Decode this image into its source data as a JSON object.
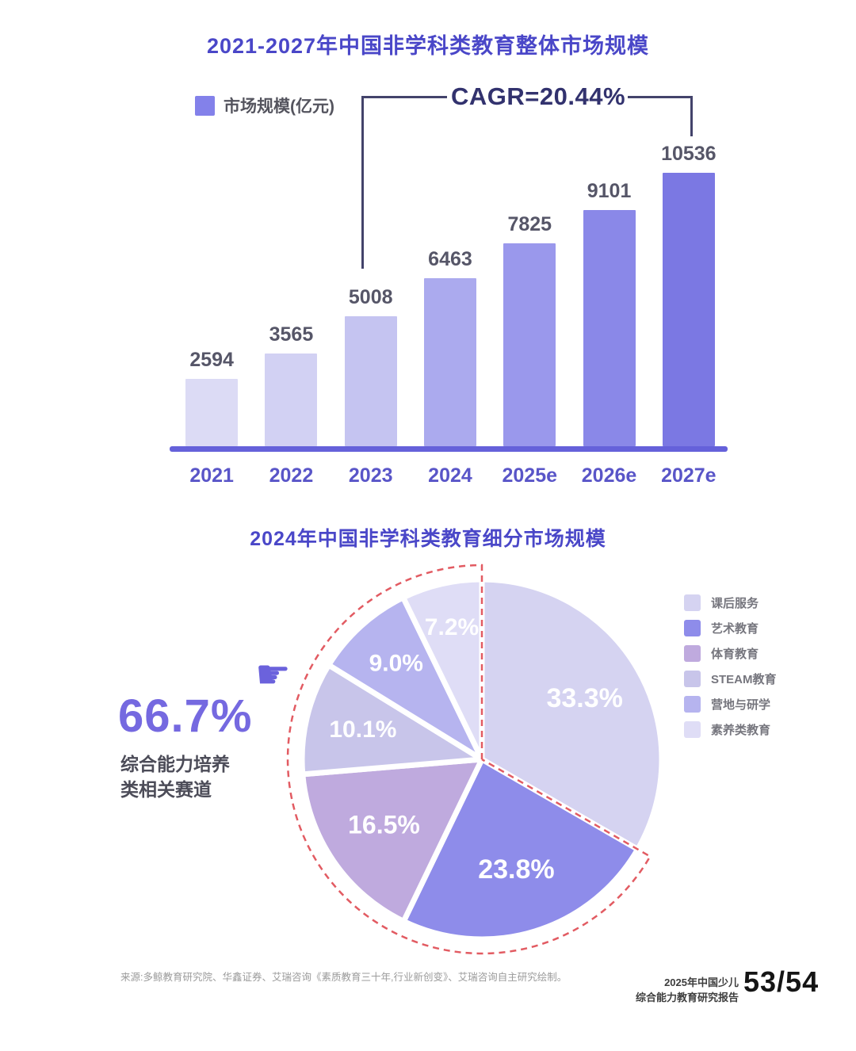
{
  "chart_data": [
    {
      "type": "bar",
      "title": "2021-2027年中国非学科类教育整体市场规模",
      "legend": [
        {
          "label": "市场规模(亿元)",
          "color": "#8381ea"
        }
      ],
      "legend_position": "top-left",
      "annotation": "CAGR=20.44%",
      "categories": [
        "2021",
        "2022",
        "2023",
        "2024",
        "2025e",
        "2026e",
        "2027e"
      ],
      "values": [
        2594,
        3565,
        5008,
        6463,
        7825,
        9101,
        10536
      ],
      "bar_colors": [
        "#dcdbf5",
        "#d2d1f3",
        "#c5c4f1",
        "#abaaee",
        "#9a98ec",
        "#8a88e8",
        "#7b78e3"
      ],
      "ylim": [
        0,
        10536
      ],
      "grid": false,
      "xlabel": "",
      "ylabel": "市场规模(亿元)"
    },
    {
      "type": "pie",
      "title": "2024年中国非学科类教育细分市场规模",
      "labels": [
        "课后服务",
        "艺术教育",
        "体育教育",
        "STEAM教育",
        "营地与研学",
        "素养类教育"
      ],
      "values": [
        33.3,
        23.8,
        16.5,
        10.1,
        9.0,
        7.2
      ],
      "value_labels": [
        "33.3%",
        "23.8%",
        "16.5%",
        "10.1%",
        "9.0%",
        "7.2%"
      ],
      "colors": [
        "#d5d3f1",
        "#8e8cea",
        "#bfaade",
        "#c8c5ea",
        "#b6b4ef",
        "#dfddf6"
      ],
      "legend_position": "right",
      "highlight": {
        "value": "66.7%",
        "caption_line1": "综合能力培养",
        "caption_line2": "类相关赛道",
        "covers_labels": [
          "艺术教育",
          "体育教育",
          "STEAM教育",
          "营地与研学",
          "素养类教育"
        ],
        "outline_color": "#e25b62"
      }
    }
  ],
  "footer": {
    "source": "来源:多鲸教育研究院、华鑫证券、艾瑞咨询《素质教育三十年,行业新创变》、艾瑞咨询自主研究绘制。",
    "report_name_line1": "2025年中国少儿",
    "report_name_line2": "综合能力教育研究报告",
    "page_number": "53/54"
  },
  "icons": {
    "pointer_hand": "☛"
  }
}
